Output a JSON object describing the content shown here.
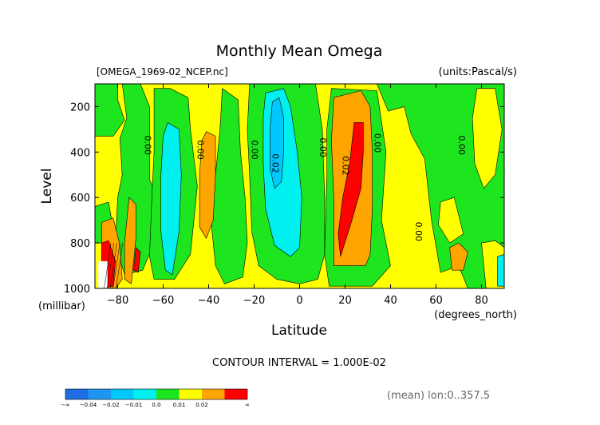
{
  "chart_data": {
    "type": "heatmap",
    "title": "Monthly Mean Omega",
    "file_label": "[OMEGA_1969-02_NCEP.nc]",
    "units_label": "(units:Pascal/s)",
    "xlabel": "Latitude",
    "x_units": "(degrees_north)",
    "ylabel": "Level",
    "y_units": "(millibar)",
    "xlim": [
      -90,
      90
    ],
    "ylim": [
      1000,
      100
    ],
    "x_ticks": [
      -80,
      -60,
      -40,
      -20,
      0,
      20,
      40,
      60,
      80
    ],
    "x_tick_labels": [
      "−80",
      "−60",
      "−40",
      "−20",
      "0",
      "20",
      "40",
      "60",
      "80"
    ],
    "y_ticks": [
      200,
      400,
      600,
      800,
      1000
    ],
    "y_tick_labels": [
      "200",
      "400",
      "600",
      "800",
      "1000"
    ],
    "contour_interval_label": "CONTOUR INTERVAL = 1.000E-02",
    "footer_label": "(mean) lon:0..357.5",
    "contour_labels": [
      {
        "text": "0.00",
        "x": -68,
        "y": 370
      },
      {
        "text": "0.00",
        "x": -45,
        "y": 390
      },
      {
        "text": "0.00",
        "x": -21,
        "y": 390
      },
      {
        "text": "0.02",
        "x": -12,
        "y": 450
      },
      {
        "text": "0.00",
        "x": 9,
        "y": 380
      },
      {
        "text": "0.02",
        "x": 19,
        "y": 460
      },
      {
        "text": "0.00",
        "x": 33,
        "y": 360
      },
      {
        "text": "0.00",
        "x": 51,
        "y": 750
      },
      {
        "text": "0.00",
        "x": 70,
        "y": 370
      }
    ],
    "levels": [
      {
        "label": "−∞",
        "color": "#1e6ee6"
      },
      {
        "label": "−0.04",
        "color": "#1e96f0"
      },
      {
        "label": "−0.02",
        "color": "#00c8ff"
      },
      {
        "label": "−0.01",
        "color": "#00f0f0"
      },
      {
        "label": "0.0",
        "color": "#1ee61e"
      },
      {
        "label": "0.01",
        "color": "#ffff00"
      },
      {
        "label": "0.02",
        "color": "#ffa500"
      },
      {
        "label": "∞",
        "color": "#ff0000"
      }
    ],
    "background_class": 5,
    "regions": [
      {
        "cls": 4,
        "pts": [
          [
            -90,
            100
          ],
          [
            -80,
            100
          ],
          [
            -80,
            170
          ],
          [
            -77,
            260
          ],
          [
            -82,
            330
          ],
          [
            -90,
            330
          ]
        ]
      },
      {
        "cls": 4,
        "pts": [
          [
            -78,
            100
          ],
          [
            -70,
            100
          ],
          [
            -66,
            200
          ],
          [
            -66,
            520
          ],
          [
            -60,
            660
          ],
          [
            -64,
            800
          ],
          [
            -69,
            920
          ],
          [
            -77,
            940
          ],
          [
            -81,
            800
          ],
          [
            -80,
            600
          ],
          [
            -78,
            500
          ],
          [
            -79,
            340
          ],
          [
            -76,
            250
          ]
        ]
      },
      {
        "cls": 4,
        "pts": [
          [
            -64,
            120
          ],
          [
            -57,
            120
          ],
          [
            -49,
            160
          ],
          [
            -48,
            300
          ],
          [
            -45,
            550
          ],
          [
            -48,
            850
          ],
          [
            -55,
            960
          ],
          [
            -64,
            960
          ],
          [
            -66,
            860
          ],
          [
            -65,
            600
          ],
          [
            -64,
            400
          ]
        ]
      },
      {
        "cls": 4,
        "pts": [
          [
            -34,
            120
          ],
          [
            -27,
            170
          ],
          [
            -26,
            400
          ],
          [
            -24,
            600
          ],
          [
            -23,
            800
          ],
          [
            -25,
            950
          ],
          [
            -33,
            980
          ],
          [
            -37,
            900
          ],
          [
            -39,
            700
          ],
          [
            -37,
            500
          ],
          [
            -35,
            300
          ]
        ]
      },
      {
        "cls": 4,
        "pts": [
          [
            -22,
            100
          ],
          [
            7,
            100
          ],
          [
            10,
            300
          ],
          [
            11,
            600
          ],
          [
            11,
            850
          ],
          [
            8,
            960
          ],
          [
            0,
            980
          ],
          [
            -10,
            960
          ],
          [
            -18,
            900
          ],
          [
            -21,
            750
          ],
          [
            -22,
            500
          ],
          [
            -23,
            300
          ]
        ]
      },
      {
        "cls": 4,
        "pts": [
          [
            14,
            120
          ],
          [
            34,
            130
          ],
          [
            38,
            400
          ],
          [
            36,
            700
          ],
          [
            40,
            900
          ],
          [
            32,
            990
          ],
          [
            13,
            990
          ],
          [
            11,
            850
          ],
          [
            12,
            500
          ],
          [
            12,
            300
          ]
        ]
      },
      {
        "cls": 4,
        "pts": [
          [
            34,
            100
          ],
          [
            90,
            100
          ],
          [
            90,
            1000
          ],
          [
            74,
            1000
          ],
          [
            70,
            900
          ],
          [
            62,
            930
          ],
          [
            58,
            700
          ],
          [
            55,
            430
          ],
          [
            49,
            320
          ],
          [
            46,
            200
          ],
          [
            39,
            220
          ]
        ]
      },
      {
        "cls": 4,
        "pts": [
          [
            -90,
            640
          ],
          [
            -84,
            620
          ],
          [
            -82,
            740
          ],
          [
            -86,
            800
          ],
          [
            -90,
            800
          ]
        ]
      },
      {
        "cls": 5,
        "pts": [
          [
            78,
            120
          ],
          [
            86,
            120
          ],
          [
            89,
            300
          ],
          [
            86,
            500
          ],
          [
            81,
            560
          ],
          [
            77,
            450
          ],
          [
            76,
            250
          ]
        ]
      },
      {
        "cls": 5,
        "pts": [
          [
            62,
            620
          ],
          [
            68,
            600
          ],
          [
            72,
            760
          ],
          [
            66,
            800
          ],
          [
            61,
            720
          ]
        ]
      },
      {
        "cls": 5,
        "pts": [
          [
            80,
            800
          ],
          [
            86,
            790
          ],
          [
            90,
            820
          ],
          [
            90,
            1000
          ],
          [
            82,
            1000
          ]
        ]
      },
      {
        "cls": 3,
        "pts": [
          [
            -58,
            270
          ],
          [
            -53,
            300
          ],
          [
            -52,
            500
          ],
          [
            -53,
            750
          ],
          [
            -56,
            940
          ],
          [
            -59,
            920
          ],
          [
            -61,
            750
          ],
          [
            -61,
            500
          ],
          [
            -60,
            330
          ]
        ]
      },
      {
        "cls": 6,
        "pts": [
          [
            -41,
            310
          ],
          [
            -37,
            330
          ],
          [
            -37,
            500
          ],
          [
            -38,
            700
          ],
          [
            -41,
            780
          ],
          [
            -44,
            730
          ],
          [
            -44,
            500
          ],
          [
            -43,
            350
          ]
        ]
      },
      {
        "cls": 3,
        "pts": [
          [
            -15,
            140
          ],
          [
            -7,
            120
          ],
          [
            -4,
            200
          ],
          [
            -1,
            400
          ],
          [
            1,
            600
          ],
          [
            0,
            820
          ],
          [
            -4,
            860
          ],
          [
            -11,
            810
          ],
          [
            -15,
            650
          ],
          [
            -16,
            450
          ],
          [
            -16,
            250
          ]
        ]
      },
      {
        "cls": 2,
        "pts": [
          [
            -12,
            180
          ],
          [
            -9,
            160
          ],
          [
            -7,
            250
          ],
          [
            -7,
            400
          ],
          [
            -8,
            530
          ],
          [
            -11,
            560
          ],
          [
            -13,
            470
          ],
          [
            -13,
            300
          ]
        ]
      },
      {
        "cls": 6,
        "pts": [
          [
            15,
            160
          ],
          [
            27,
            130
          ],
          [
            31,
            200
          ],
          [
            32,
            400
          ],
          [
            32,
            650
          ],
          [
            31,
            850
          ],
          [
            29,
            900
          ],
          [
            15,
            900
          ],
          [
            15,
            600
          ],
          [
            14,
            350
          ]
        ]
      },
      {
        "cls": 7,
        "pts": [
          [
            24,
            270
          ],
          [
            28,
            270
          ],
          [
            28,
            400
          ],
          [
            27,
            560
          ],
          [
            23,
            700
          ],
          [
            18,
            860
          ],
          [
            17,
            760
          ],
          [
            19,
            600
          ],
          [
            22,
            450
          ]
        ]
      },
      {
        "cls": 6,
        "pts": [
          [
            -87,
            710
          ],
          [
            -82,
            690
          ],
          [
            -79,
            810
          ],
          [
            -78,
            960
          ],
          [
            -81,
            1000
          ],
          [
            -87,
            1000
          ]
        ]
      },
      {
        "cls": 7,
        "pts": [
          [
            -87,
            800
          ],
          [
            -84,
            790
          ],
          [
            -81,
            880
          ],
          [
            -82,
            990
          ],
          [
            -87,
            1000
          ]
        ]
      },
      {
        "cls": 6,
        "pts": [
          [
            -75,
            600
          ],
          [
            -72,
            630
          ],
          [
            -72,
            780
          ],
          [
            -74,
            980
          ],
          [
            -77,
            960
          ],
          [
            -77,
            800
          ]
        ]
      },
      {
        "cls": 7,
        "pts": [
          [
            -72,
            820
          ],
          [
            -70,
            840
          ],
          [
            -71,
            930
          ],
          [
            -73,
            920
          ]
        ]
      },
      {
        "cls": 6,
        "pts": [
          [
            66,
            820
          ],
          [
            70,
            800
          ],
          [
            74,
            840
          ],
          [
            72,
            920
          ],
          [
            67,
            920
          ]
        ]
      },
      {
        "cls": 3,
        "pts": [
          [
            87,
            860
          ],
          [
            90,
            850
          ],
          [
            90,
            990
          ],
          [
            87,
            990
          ]
        ]
      }
    ]
  }
}
